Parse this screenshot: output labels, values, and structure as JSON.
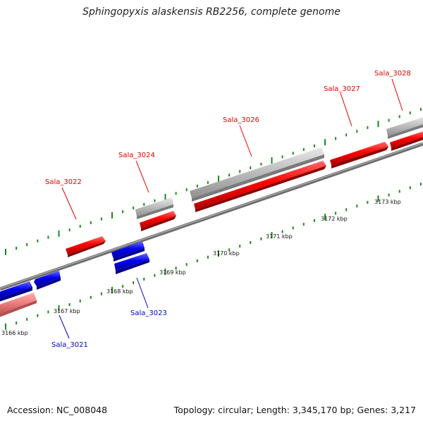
{
  "title": "Sphingopyxis alaskensis RB2256, complete genome",
  "footer": {
    "accession": "Accession: NC_008048",
    "topology": "Topology: circular; Length: 3,345,170 bp; Genes: 3,217"
  },
  "colors": {
    "forward_gene": "#ff0000",
    "reverse_gene": "#0000ee",
    "pseudo_forward_gene": "#c0c0c0",
    "pseudo_reverse_gene": "#f08080",
    "backbone": "#808080",
    "tick": "#1a8a1a",
    "forward_label": "#e00000",
    "reverse_label": "#0000cc"
  },
  "kbp_labels": [
    "3166 kbp",
    "3167 kbp",
    "3168 kbp",
    "3169 kbp",
    "3170 kbp",
    "3171 kbp",
    "3172 kbp",
    "3173 kbp"
  ],
  "gene_labels": [
    {
      "text": "Sala_3021",
      "strand": "reverse"
    },
    {
      "text": "Sala_3022",
      "strand": "forward"
    },
    {
      "text": "Sala_3023",
      "strand": "reverse"
    },
    {
      "text": "Sala_3024",
      "strand": "forward"
    },
    {
      "text": "Sala_3026",
      "strand": "forward"
    },
    {
      "text": "Sala_3027",
      "strand": "forward"
    },
    {
      "text": "Sala_3028",
      "strand": "forward"
    }
  ]
}
